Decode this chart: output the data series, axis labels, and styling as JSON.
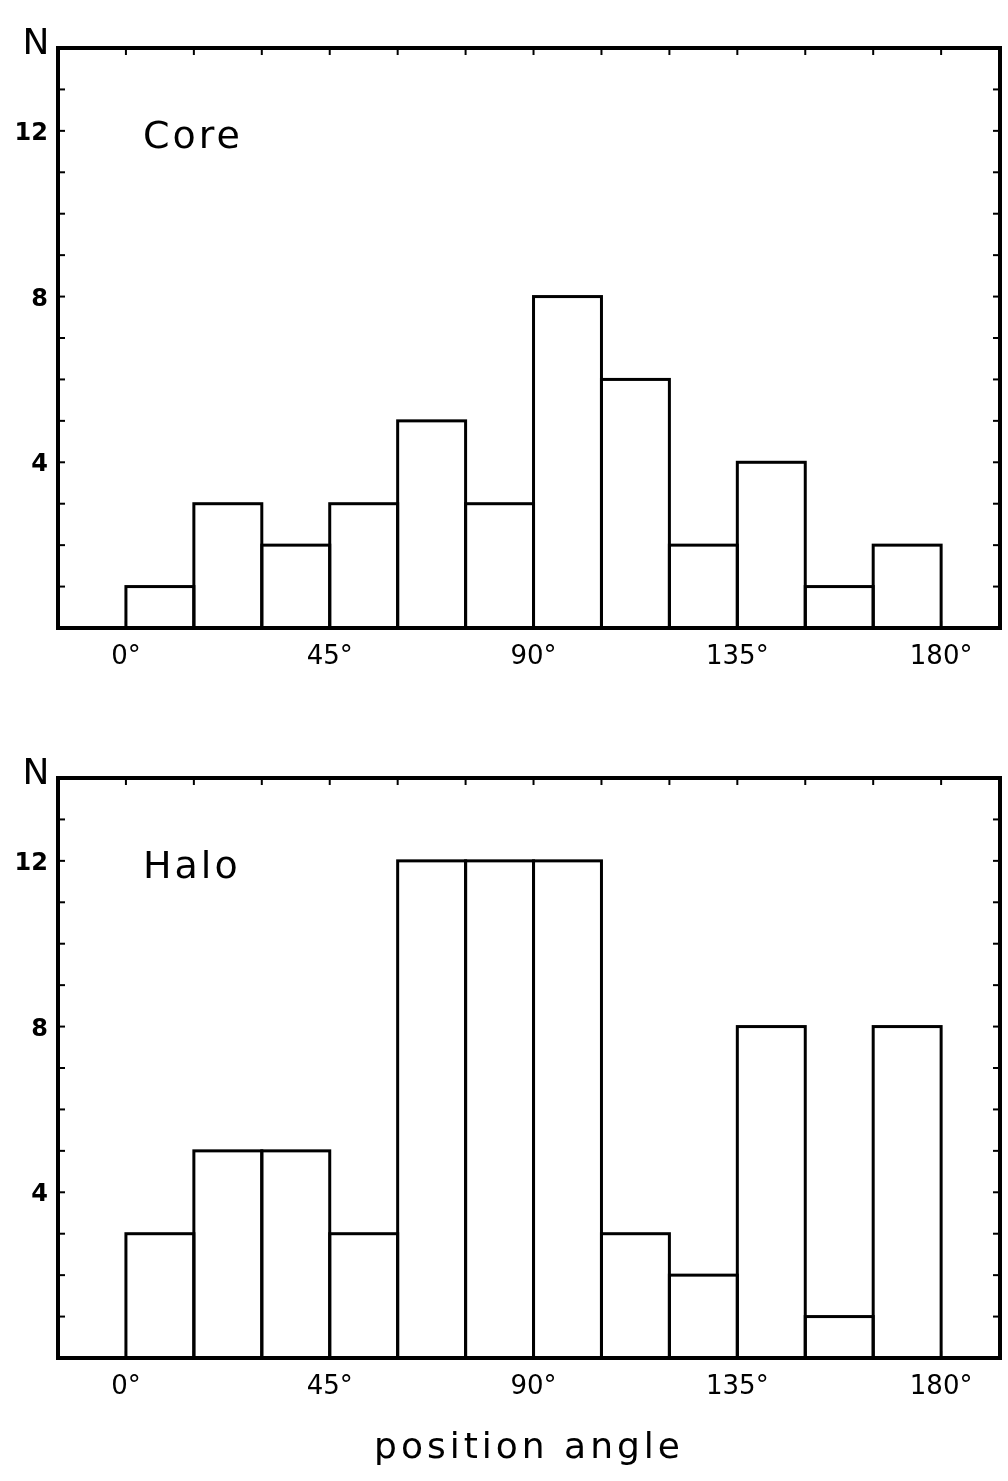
{
  "chart_data": [
    {
      "type": "histogram",
      "ylabel": "N",
      "annotations": [
        "Core"
      ],
      "bins": [
        0,
        15,
        30,
        45,
        60,
        75,
        90,
        105,
        120,
        135,
        150,
        165,
        180
      ],
      "values": [
        1,
        3,
        2,
        3,
        5,
        3,
        8,
        6,
        2,
        4,
        1,
        2
      ],
      "color": "#000000",
      "xlim": [
        -15,
        193
      ],
      "ylim": [
        0,
        14
      ],
      "xticks": [
        {
          "value": 0,
          "label": "0°"
        },
        {
          "value": 15,
          "label": null
        },
        {
          "value": 30,
          "label": null
        },
        {
          "value": 45,
          "label": "45°"
        },
        {
          "value": 60,
          "label": null
        },
        {
          "value": 75,
          "label": null
        },
        {
          "value": 90,
          "label": "90°"
        },
        {
          "value": 105,
          "label": null
        },
        {
          "value": 120,
          "label": null
        },
        {
          "value": 135,
          "label": "135°"
        },
        {
          "value": 150,
          "label": null
        },
        {
          "value": 165,
          "label": null
        },
        {
          "value": 180,
          "label": "180°"
        }
      ],
      "yticks": [
        {
          "value": 1,
          "label": null
        },
        {
          "value": 2,
          "label": null
        },
        {
          "value": 3,
          "label": null
        },
        {
          "value": 4,
          "label": "4"
        },
        {
          "value": 5,
          "label": null
        },
        {
          "value": 6,
          "label": null
        },
        {
          "value": 7,
          "label": null
        },
        {
          "value": 8,
          "label": "8"
        },
        {
          "value": 9,
          "label": null
        },
        {
          "value": 10,
          "label": null
        },
        {
          "value": 11,
          "label": null
        },
        {
          "value": 12,
          "label": "12"
        },
        {
          "value": 13,
          "label": null
        }
      ],
      "grid": false
    },
    {
      "type": "histogram",
      "ylabel": "N",
      "xlabel": "position angle",
      "annotations": [
        "Halo"
      ],
      "bins": [
        0,
        15,
        30,
        45,
        60,
        75,
        90,
        105,
        120,
        135,
        150,
        165,
        180
      ],
      "values": [
        3,
        5,
        5,
        3,
        12,
        12,
        12,
        3,
        2,
        8,
        1,
        8
      ],
      "color": "#000000",
      "xlim": [
        -15,
        193
      ],
      "ylim": [
        0,
        14
      ],
      "xticks": [
        {
          "value": 0,
          "label": "0°"
        },
        {
          "value": 15,
          "label": null
        },
        {
          "value": 30,
          "label": null
        },
        {
          "value": 45,
          "label": "45°"
        },
        {
          "value": 60,
          "label": null
        },
        {
          "value": 75,
          "label": null
        },
        {
          "value": 90,
          "label": "90°"
        },
        {
          "value": 105,
          "label": null
        },
        {
          "value": 120,
          "label": null
        },
        {
          "value": 135,
          "label": "135°"
        },
        {
          "value": 150,
          "label": null
        },
        {
          "value": 165,
          "label": null
        },
        {
          "value": 180,
          "label": "180°"
        }
      ],
      "yticks": [
        {
          "value": 1,
          "label": null
        },
        {
          "value": 2,
          "label": null
        },
        {
          "value": 3,
          "label": null
        },
        {
          "value": 4,
          "label": "4"
        },
        {
          "value": 5,
          "label": null
        },
        {
          "value": 6,
          "label": null
        },
        {
          "value": 7,
          "label": null
        },
        {
          "value": 8,
          "label": "8"
        },
        {
          "value": 9,
          "label": null
        },
        {
          "value": 10,
          "label": null
        },
        {
          "value": 11,
          "label": null
        },
        {
          "value": 12,
          "label": "12"
        },
        {
          "value": 13,
          "label": null
        }
      ],
      "grid": false
    }
  ]
}
